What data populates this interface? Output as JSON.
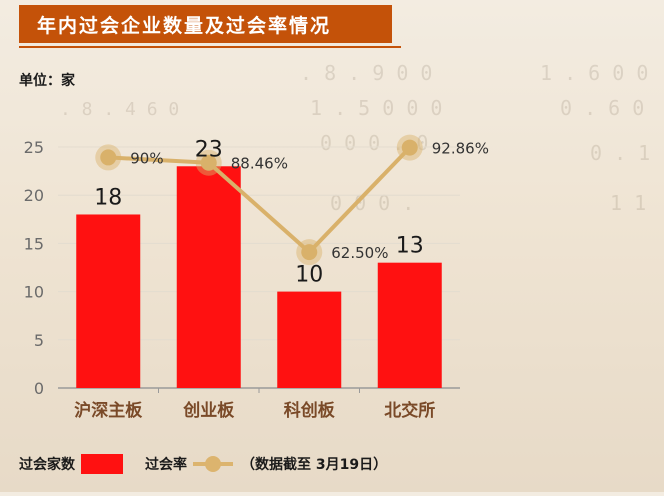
{
  "title": "年内过会企业数量及过会率情况",
  "unit_label": "单位：家",
  "note": "（数据截至 3月19日）",
  "colors": {
    "title_bg": "#c45209",
    "bar": "#ff1111",
    "line": "#d9b16a",
    "axis_text": "#6b6b6b"
  },
  "chart_data": {
    "type": "bar",
    "categories": [
      "沪深主板",
      "创业板",
      "科创板",
      "北交所"
    ],
    "ylim": [
      0,
      25
    ],
    "yticks": [
      0,
      5,
      10,
      15,
      20,
      25
    ],
    "series": [
      {
        "name": "过会家数",
        "type": "bar",
        "values": [
          18,
          23,
          10,
          13
        ],
        "labels": [
          "18",
          "23",
          "10",
          "13"
        ]
      },
      {
        "name": "过会率",
        "type": "line",
        "values": [
          90,
          88.46,
          62.5,
          92.86
        ],
        "labels": [
          "90%",
          "88.46%",
          "62.50%",
          "92.86%"
        ]
      }
    ],
    "legend": "bottom-left"
  }
}
